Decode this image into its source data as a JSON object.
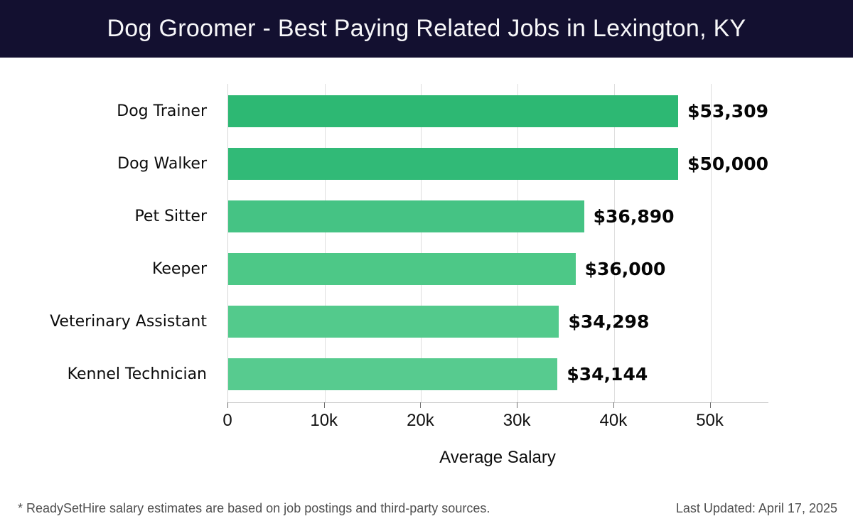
{
  "header": {
    "title": "Dog Groomer - Best Paying Related Jobs in Lexington, KY",
    "bg_color": "#131030",
    "text_color": "#f7f7f9"
  },
  "chart_data": {
    "type": "bar",
    "orientation": "horizontal",
    "title": "Dog Groomer - Best Paying Related Jobs in Lexington, KY",
    "categories": [
      "Dog Trainer",
      "Dog Walker",
      "Pet Sitter",
      "Keeper",
      "Veterinary Assistant",
      "Kennel Technician"
    ],
    "values": [
      53309,
      50000,
      36890,
      36000,
      34298,
      34144
    ],
    "value_labels": [
      "$53,309",
      "$50,000",
      "$36,890",
      "$36,000",
      "$34,298",
      "$34,144"
    ],
    "bar_colors": [
      "#2db873",
      "#31ba77",
      "#45c384",
      "#4dc887",
      "#53ca8c",
      "#57cb8f"
    ],
    "xlabel": "Average Salary",
    "ylabel": "",
    "xlim": [
      0,
      56000
    ],
    "x_ticks": [
      {
        "value": 0,
        "label": "0"
      },
      {
        "value": 10000,
        "label": "10k"
      },
      {
        "value": 20000,
        "label": "20k"
      },
      {
        "value": 30000,
        "label": "30k"
      },
      {
        "value": 40000,
        "label": "40k"
      },
      {
        "value": 50000,
        "label": "50k"
      }
    ],
    "grid": "vertical",
    "legend": "none",
    "value_label_color": "#050505",
    "gridline_color": "#dedede"
  },
  "footer": {
    "note": "* ReadySetHire salary estimates are based on job postings and third-party sources.",
    "last_updated": "Last Updated: April 17, 2025"
  }
}
